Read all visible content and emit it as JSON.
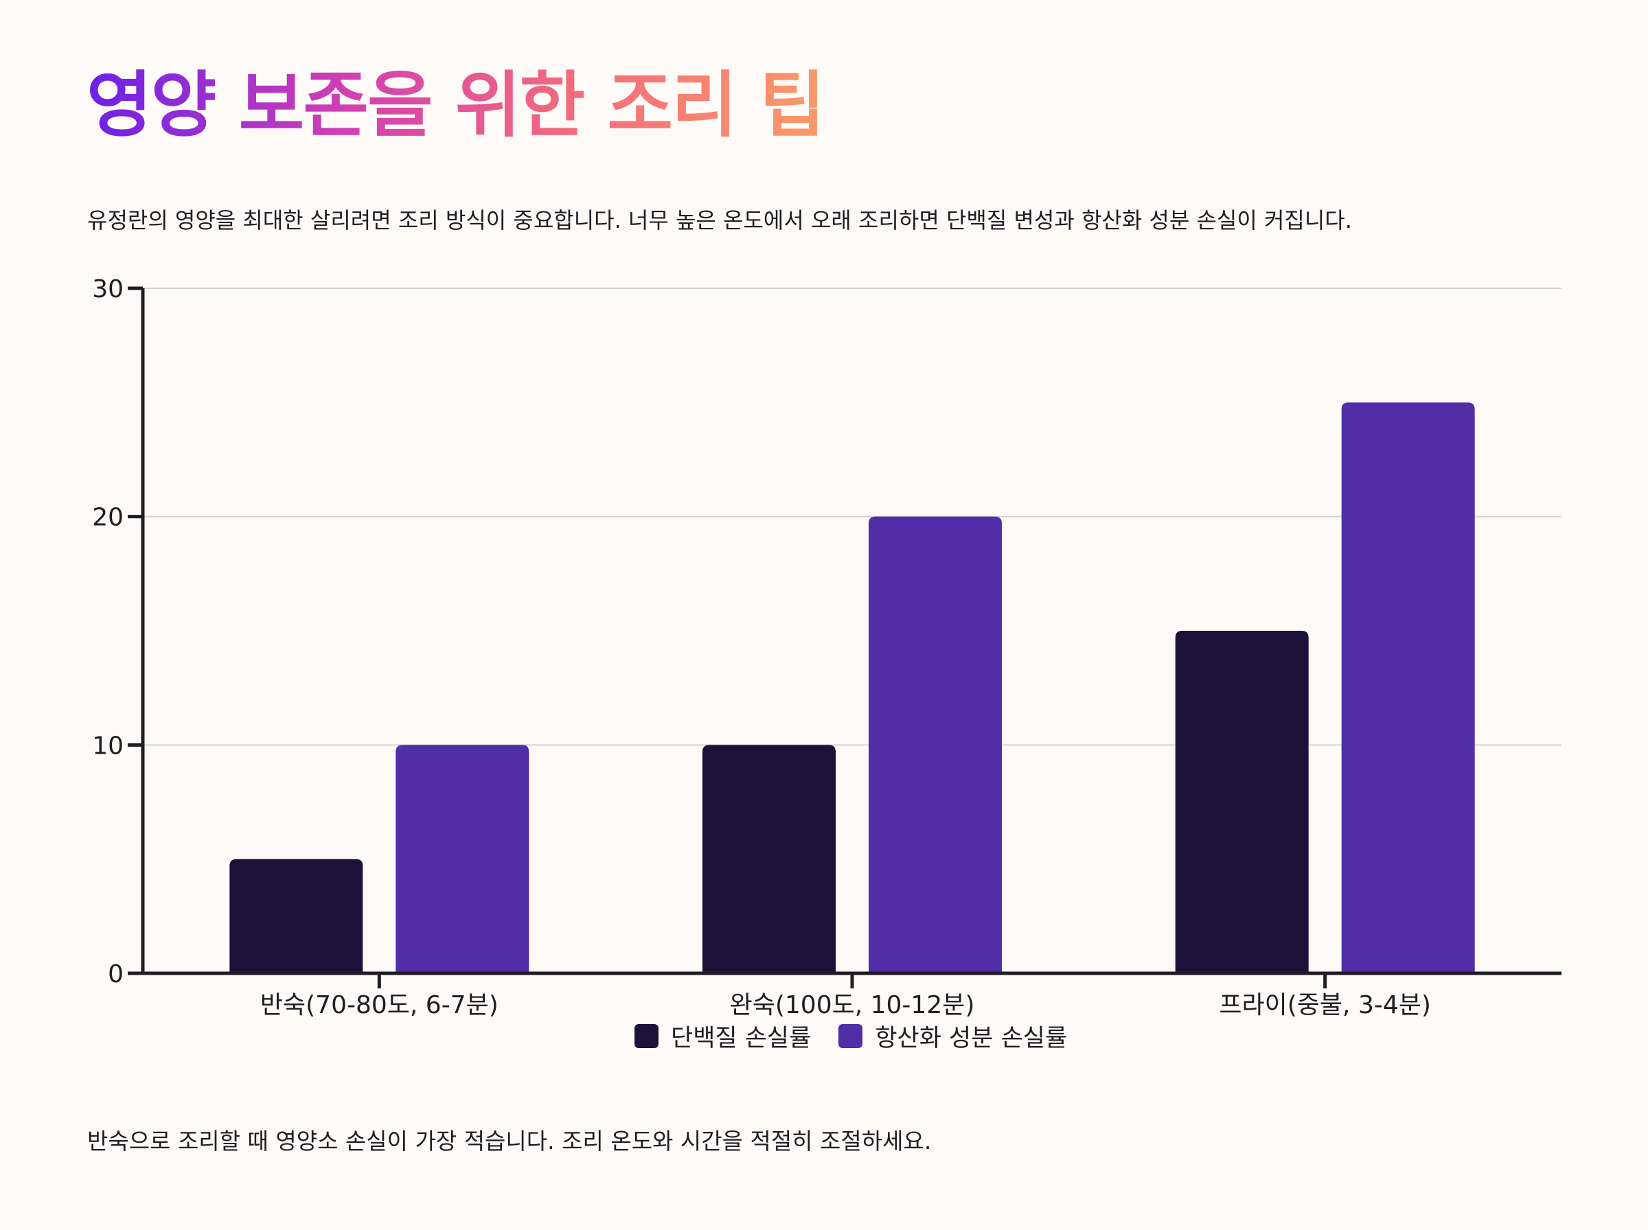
{
  "title": "영양 보존을 위한 조리 팁",
  "intro": "유정란의 영양을 최대한 살리려면 조리 방식이 중요합니다. 너무 높은 온도에서 오래 조리하면 단백질 변성과 항산화 성분 손실이 커집니다.",
  "footnote": "반숙으로 조리할 때 영양소 손실이 가장 적습니다. 조리 온도와 시간을 적절히 조절하세요.",
  "chart_data": {
    "type": "bar",
    "categories": [
      "반숙(70-80도, 6-7분)",
      "완숙(100도, 10-12분)",
      "프라이(중불, 3-4분)"
    ],
    "series": [
      {
        "name": "단백질 손실률",
        "values": [
          5,
          10,
          15
        ],
        "color": "#1c1138"
      },
      {
        "name": "항산화 성분 손실률",
        "values": [
          10,
          20,
          25
        ],
        "color": "#512da8"
      }
    ],
    "ylim": [
      0,
      30
    ],
    "yticks": [
      0,
      10,
      20,
      30
    ],
    "xlabel": "",
    "ylabel": "",
    "grid": true,
    "legend_position": "bottom-center"
  }
}
